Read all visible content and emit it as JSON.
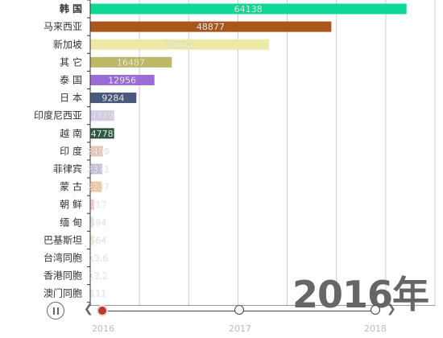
{
  "chart_data": {
    "type": "bar",
    "orientation": "horizontal",
    "categories": [
      "韩 国",
      "马来西亚",
      "新加坡",
      "其 它",
      "泰 国",
      "日 本",
      "印度尼西亚",
      "越 南",
      "印 度",
      "菲律宾",
      "蒙 古",
      "朝 鲜",
      "缅 甸",
      "巴基斯坦",
      "台湾同胞",
      "香港同胞",
      "澳门同胞"
    ],
    "values": [
      64138,
      48877,
      36224,
      16487,
      12956,
      9284,
      4779,
      4778,
      2499,
      2371,
      2237,
      717,
      594,
      564,
      13.6,
      13.2,
      111
    ],
    "value_labels": [
      "64138",
      "48877",
      "36224",
      "16487",
      "12956",
      "9284",
      "4779",
      "4778",
      "2499",
      "2371",
      "2237",
      "717",
      "594",
      "564",
      "13.6",
      "13.2",
      "111"
    ],
    "colors": [
      "#0ed896",
      "#a9561c",
      "#ede9a7",
      "#bdb867",
      "#9b6bd6",
      "#4a5a7c",
      "#d4cde6",
      "#2f5a40",
      "#e8c7b8",
      "#c6c2dd",
      "#f0c8a0",
      "#f2c8c4",
      "#e8e8e0",
      "#f0f0d8",
      "#c8e0ea",
      "#f0c0b0",
      "#d8eed8"
    ],
    "xlim": [
      0,
      70000
    ],
    "xticks": [
      "0",
      "10,000",
      "20,000",
      "30,000",
      "40,000",
      "50,000",
      "60,000",
      "70,000"
    ],
    "xtick_values": [
      0,
      10000,
      20000,
      30000,
      40000,
      50000,
      60000,
      70000
    ],
    "grid": true,
    "year_label": "2016年"
  },
  "timeline": {
    "years": [
      "2016",
      "2017",
      "2018"
    ],
    "current": "2016"
  }
}
